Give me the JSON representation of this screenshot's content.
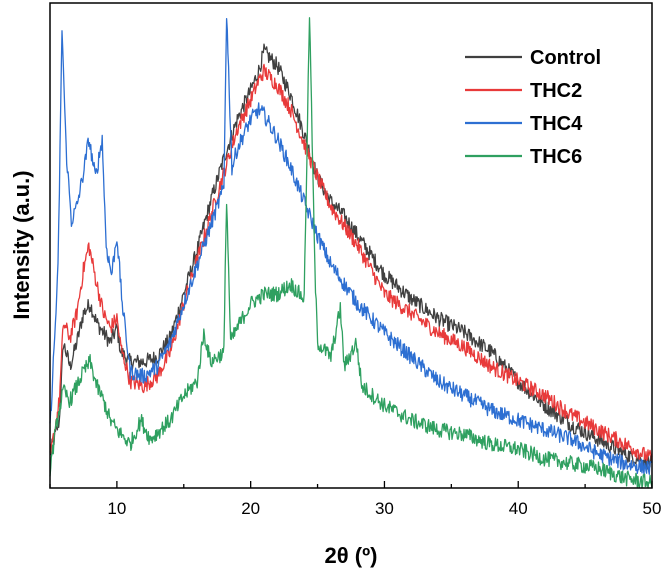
{
  "chart_data": {
    "type": "line",
    "title": "",
    "xlabel": "2θ (º)",
    "ylabel": "Intensity (a.u.)",
    "xlim": [
      5,
      50
    ],
    "ylim": [
      0,
      100
    ],
    "x_ticks": [
      "10",
      "20",
      "30",
      "40",
      "50"
    ],
    "grid": false,
    "legend_position": "top-right",
    "series": [
      {
        "name": "Control",
        "color": "#404040",
        "points": [
          [
            5,
            7
          ],
          [
            5.7,
            14
          ],
          [
            6,
            30
          ],
          [
            6.5,
            25
          ],
          [
            7,
            30
          ],
          [
            7.5,
            36
          ],
          [
            8,
            38
          ],
          [
            8.5,
            34
          ],
          [
            9,
            32
          ],
          [
            9.5,
            30
          ],
          [
            10,
            33
          ],
          [
            10.3,
            28
          ],
          [
            11,
            26
          ],
          [
            12,
            26
          ],
          [
            13,
            27
          ],
          [
            14,
            31
          ],
          [
            15,
            40
          ],
          [
            16,
            49
          ],
          [
            17,
            59
          ],
          [
            18,
            68
          ],
          [
            19,
            76
          ],
          [
            20,
            82
          ],
          [
            20.6,
            86
          ],
          [
            21,
            90
          ],
          [
            22,
            87
          ],
          [
            23,
            81
          ],
          [
            24,
            73
          ],
          [
            25,
            64
          ],
          [
            26,
            59
          ],
          [
            27,
            56
          ],
          [
            28,
            52
          ],
          [
            30,
            44
          ],
          [
            32,
            39
          ],
          [
            34,
            35
          ],
          [
            36,
            32
          ],
          [
            38,
            28
          ],
          [
            40,
            22
          ],
          [
            42,
            17
          ],
          [
            44,
            13
          ],
          [
            46,
            10
          ],
          [
            48,
            7
          ],
          [
            50,
            5
          ]
        ]
      },
      {
        "name": "THC2",
        "color": "#e83a3a",
        "points": [
          [
            5,
            6
          ],
          [
            5.7,
            18
          ],
          [
            6,
            34
          ],
          [
            6.5,
            31
          ],
          [
            7,
            36
          ],
          [
            7.5,
            45
          ],
          [
            7.9,
            50
          ],
          [
            8.5,
            42
          ],
          [
            9,
            36
          ],
          [
            9.5,
            33
          ],
          [
            10,
            35
          ],
          [
            10.3,
            29
          ],
          [
            11,
            22
          ],
          [
            12,
            21
          ],
          [
            13,
            23
          ],
          [
            14,
            28
          ],
          [
            15,
            38
          ],
          [
            16,
            47
          ],
          [
            17,
            56
          ],
          [
            18,
            65
          ],
          [
            19,
            74
          ],
          [
            20,
            80
          ],
          [
            20.6,
            84
          ],
          [
            21,
            86
          ],
          [
            22,
            83
          ],
          [
            23,
            78
          ],
          [
            24,
            71
          ],
          [
            25,
            64
          ],
          [
            26,
            58
          ],
          [
            27,
            54
          ],
          [
            28,
            50
          ],
          [
            30,
            40
          ],
          [
            32,
            36
          ],
          [
            34,
            32
          ],
          [
            36,
            29
          ],
          [
            38,
            25
          ],
          [
            40,
            22
          ],
          [
            42,
            19
          ],
          [
            44,
            15
          ],
          [
            46,
            12
          ],
          [
            48,
            9
          ],
          [
            50,
            6
          ]
        ]
      },
      {
        "name": "THC4",
        "color": "#2d6fd2",
        "points": [
          [
            5,
            12
          ],
          [
            5.6,
            45
          ],
          [
            5.9,
            95
          ],
          [
            6.2,
            70
          ],
          [
            6.6,
            55
          ],
          [
            7,
            58
          ],
          [
            7.5,
            65
          ],
          [
            7.9,
            72
          ],
          [
            8.4,
            64
          ],
          [
            8.9,
            72
          ],
          [
            9.2,
            50
          ],
          [
            9.6,
            44
          ],
          [
            10,
            52
          ],
          [
            10.4,
            38
          ],
          [
            11,
            24
          ],
          [
            12,
            23
          ],
          [
            13,
            25
          ],
          [
            14,
            30
          ],
          [
            15,
            38
          ],
          [
            16,
            46
          ],
          [
            17,
            54
          ],
          [
            18,
            62
          ],
          [
            18.2,
            98
          ],
          [
            18.6,
            66
          ],
          [
            19,
            70
          ],
          [
            20,
            76
          ],
          [
            20.6,
            78
          ],
          [
            21,
            77
          ],
          [
            22,
            72
          ],
          [
            23,
            66
          ],
          [
            24,
            59
          ],
          [
            25,
            52
          ],
          [
            26,
            46
          ],
          [
            27,
            42
          ],
          [
            28,
            38
          ],
          [
            30,
            32
          ],
          [
            32,
            27
          ],
          [
            34,
            22
          ],
          [
            36,
            19
          ],
          [
            38,
            16
          ],
          [
            40,
            14
          ],
          [
            42,
            12
          ],
          [
            44,
            10
          ],
          [
            46,
            7
          ],
          [
            48,
            5
          ],
          [
            50,
            4
          ]
        ]
      },
      {
        "name": "THC6",
        "color": "#2fa060",
        "points": [
          [
            5,
            4
          ],
          [
            5.6,
            15
          ],
          [
            6,
            20
          ],
          [
            6.5,
            18
          ],
          [
            7,
            21
          ],
          [
            7.5,
            24
          ],
          [
            8,
            26
          ],
          [
            8.5,
            21
          ],
          [
            9,
            18
          ],
          [
            9.5,
            14
          ],
          [
            10,
            12
          ],
          [
            11,
            9
          ],
          [
            11.8,
            14
          ],
          [
            12.5,
            10
          ],
          [
            14,
            14
          ],
          [
            15,
            19
          ],
          [
            16,
            22
          ],
          [
            16.5,
            32
          ],
          [
            17,
            26
          ],
          [
            18,
            28
          ],
          [
            18.2,
            60
          ],
          [
            18.5,
            30
          ],
          [
            19,
            33
          ],
          [
            20,
            38
          ],
          [
            21,
            40
          ],
          [
            22,
            40
          ],
          [
            23,
            42
          ],
          [
            24,
            39
          ],
          [
            24.4,
            98
          ],
          [
            24.8,
            45
          ],
          [
            25,
            30
          ],
          [
            26,
            27
          ],
          [
            26.7,
            37
          ],
          [
            27,
            25
          ],
          [
            27.9,
            30
          ],
          [
            28.3,
            21
          ],
          [
            30,
            17
          ],
          [
            32,
            14
          ],
          [
            34,
            12
          ],
          [
            36,
            11
          ],
          [
            38,
            9
          ],
          [
            40,
            8
          ],
          [
            42,
            6
          ],
          [
            44,
            5
          ],
          [
            46,
            4
          ],
          [
            48,
            2
          ],
          [
            50,
            1
          ]
        ]
      }
    ]
  }
}
